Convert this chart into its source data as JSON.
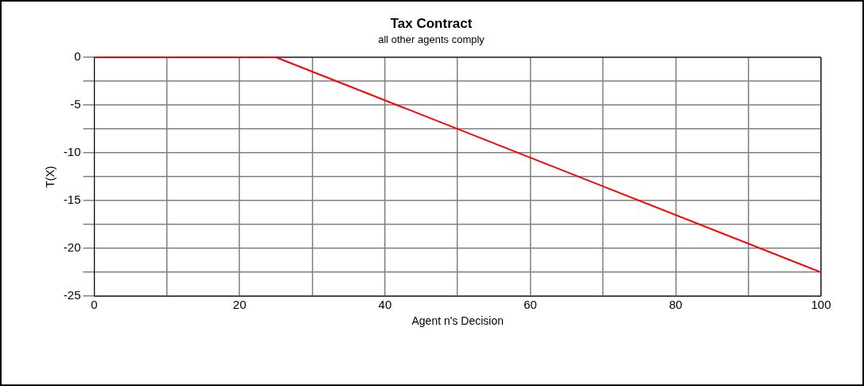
{
  "chart_data": {
    "type": "line",
    "title": "Tax Contract",
    "subtitle": "all other agents comply",
    "xlabel": "Agent n's Decision",
    "ylabel": "T(X)",
    "x": [
      0,
      25,
      100
    ],
    "series": [
      {
        "color": "#ff0000",
        "values": [
          0,
          0,
          -22.5
        ]
      }
    ],
    "xlim": [
      0,
      100
    ],
    "xticks": [
      0,
      {
        "value": 10,
        "label": null
      },
      20,
      {
        "value": 30,
        "label": null
      },
      40,
      {
        "value": 50,
        "label": null
      },
      60,
      {
        "value": 70,
        "label": null
      },
      80,
      {
        "value": 90,
        "label": null
      },
      100
    ],
    "ylim": [
      -25,
      0
    ],
    "yticks": [
      -25,
      {
        "value": -22.5,
        "label": null
      },
      -20,
      {
        "value": -17.5,
        "label": null
      },
      -15,
      {
        "value": -12.5,
        "label": null
      },
      -10,
      {
        "value": -7.5,
        "label": null
      },
      -5,
      {
        "value": -2.5,
        "label": null
      },
      0
    ],
    "grid": true,
    "legend": false,
    "marker": "none",
    "line_style": "solid"
  }
}
